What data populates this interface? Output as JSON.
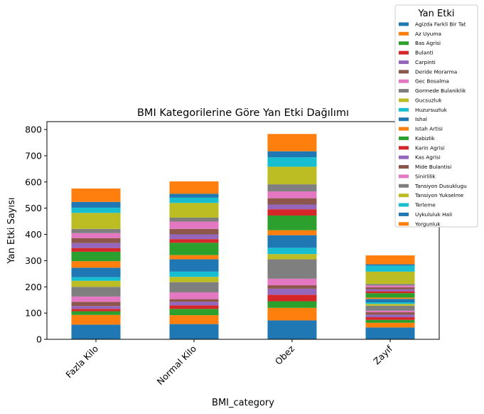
{
  "chart_data": {
    "type": "bar",
    "stacked": true,
    "title": "BMI Kategorilerine Göre Yan Etki Dağılımı",
    "xlabel": "BMI_category",
    "ylabel": "Yan Etki Sayısı",
    "ylim": [
      0,
      830
    ],
    "yticks": [
      0,
      100,
      200,
      300,
      400,
      500,
      600,
      700,
      800
    ],
    "categories": [
      "Fazla Kilo",
      "Normal Kilo",
      "Obez",
      "Zayıf"
    ],
    "legend": {
      "title": "Yan Etki",
      "position": "upper-right, outside axes"
    },
    "series": [
      {
        "name": "Agizda Farkli Bir Tat",
        "color": "#1f77b4",
        "values": [
          56,
          58,
          72,
          45
        ]
      },
      {
        "name": "Az Uyuma",
        "color": "#ff7f0e",
        "values": [
          37,
          34,
          48,
          18
        ]
      },
      {
        "name": "Bas Agrisi",
        "color": "#2ca02c",
        "values": [
          14,
          24,
          25,
          11
        ]
      },
      {
        "name": "Bulanti",
        "color": "#d62728",
        "values": [
          9,
          13,
          25,
          10
        ]
      },
      {
        "name": "Carpinti",
        "color": "#9467bd",
        "values": [
          11,
          14,
          23,
          10
        ]
      },
      {
        "name": "Deride Morarma",
        "color": "#8c564b",
        "values": [
          16,
          10,
          13,
          9
        ]
      },
      {
        "name": "Gec Bosalma",
        "color": "#e377c2",
        "values": [
          20,
          26,
          25,
          6
        ]
      },
      {
        "name": "Gormede Bulaniklik",
        "color": "#7f7f7f",
        "values": [
          37,
          39,
          74,
          19
        ]
      },
      {
        "name": "Gucsuzluk",
        "color": "#bcbd22",
        "values": [
          23,
          20,
          20,
          7
        ]
      },
      {
        "name": "Huzursuzluk",
        "color": "#17becf",
        "values": [
          14,
          20,
          24,
          6
        ]
      },
      {
        "name": "Ishal",
        "color": "#1f77b4",
        "values": [
          36,
          47,
          48,
          13
        ]
      },
      {
        "name": "Istah Artisi",
        "color": "#ff7f0e",
        "values": [
          25,
          16,
          19,
          5
        ]
      },
      {
        "name": "Kabizlik",
        "color": "#2ca02c",
        "values": [
          36,
          47,
          56,
          17
        ]
      },
      {
        "name": "Karin Agrisi",
        "color": "#d62728",
        "values": [
          14,
          14,
          24,
          7
        ]
      },
      {
        "name": "Kas Agrisi",
        "color": "#9467bd",
        "values": [
          19,
          18,
          18,
          8
        ]
      },
      {
        "name": "Mide Bulantisi",
        "color": "#8c564b",
        "values": [
          19,
          21,
          24,
          7
        ]
      },
      {
        "name": "Sinirlilik",
        "color": "#e377c2",
        "values": [
          19,
          28,
          26,
          7
        ]
      },
      {
        "name": "Tansiyon Dusuklugu",
        "color": "#7f7f7f",
        "values": [
          16,
          15,
          27,
          6
        ]
      },
      {
        "name": "Tansiyon Yukselme",
        "color": "#bcbd22",
        "values": [
          61,
          56,
          67,
          47
        ]
      },
      {
        "name": "Terleme",
        "color": "#17becf",
        "values": [
          20,
          20,
          36,
          23
        ]
      },
      {
        "name": "Uykululuk Hali",
        "color": "#1f77b4",
        "values": [
          22,
          15,
          23,
          5
        ]
      },
      {
        "name": "Yorgunluk",
        "color": "#ff7f0e",
        "values": [
          51,
          47,
          66,
          34
        ]
      }
    ]
  }
}
